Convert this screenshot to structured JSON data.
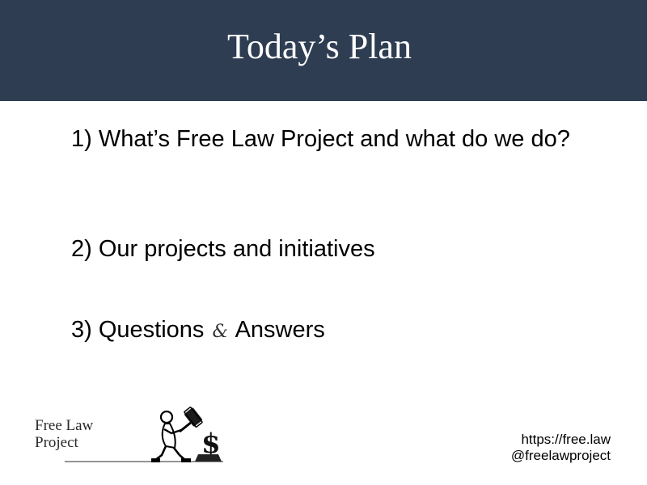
{
  "slide": {
    "title": "Today’s Plan",
    "background_color": "#2e3d52"
  },
  "agenda": {
    "item1_number": "1)",
    "item1_text": "What’s Free Law Project and what do we do?",
    "item2_number": "2)",
    "item2_text": "Our projects and initiatives",
    "item3_number": "3)",
    "item3_text_before": "Questions",
    "item3_amp": "&",
    "item3_text_after": "Answers"
  },
  "logo": {
    "line1": "Free Law",
    "line2": "Project"
  },
  "contact": {
    "website": "https://free.law",
    "handle": "@freelawproject"
  }
}
